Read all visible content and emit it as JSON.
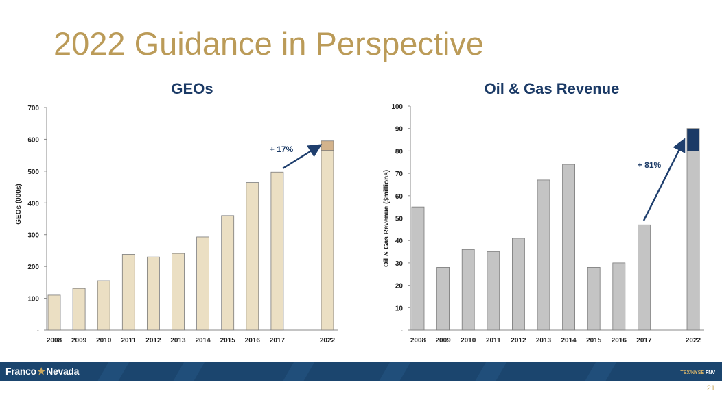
{
  "slide": {
    "title": "2022 Guidance in Perspective",
    "page_number": "21"
  },
  "footer": {
    "logo_left": "Franco",
    "logo_star": "★",
    "logo_right": "Nevada",
    "ticker_label": "TSX/NYSE",
    "ticker_symbol": "FNV"
  },
  "colors": {
    "title": "#bb9b58",
    "geo_bar": "#ebdfc3",
    "geo_increment": "#d3b38c",
    "oil_bar": "#c4c4c4",
    "oil_increment": "#1b3a66",
    "arrow": "#1f3f6e",
    "footer": "#1b456e"
  },
  "chart_data": [
    {
      "type": "bar",
      "title": "GEOs",
      "xlabel": "",
      "ylabel": "GEOs (000s)",
      "categories": [
        "2008",
        "2009",
        "2010",
        "2011",
        "2012",
        "2013",
        "2014",
        "2015",
        "2016",
        "2017",
        "2022"
      ],
      "values": [
        110,
        131,
        155,
        238,
        230,
        241,
        293,
        360,
        464,
        497,
        565
      ],
      "increment": {
        "category": "2022",
        "from": 565,
        "to": 595
      },
      "ylim": [
        0,
        700
      ],
      "yticks": [
        "-",
        "100",
        "200",
        "300",
        "400",
        "500",
        "600",
        "700"
      ],
      "annotation": {
        "text": "+ 17%",
        "from_category": "2017",
        "to_category": "2022"
      },
      "grid": false
    },
    {
      "type": "bar",
      "title": "Oil & Gas Revenue",
      "xlabel": "",
      "ylabel": "Oil & Gas Revenue ($millions)",
      "categories": [
        "2008",
        "2009",
        "2010",
        "2011",
        "2012",
        "2013",
        "2014",
        "2015",
        "2016",
        "2017",
        "2022"
      ],
      "values": [
        55,
        28,
        36,
        35,
        41,
        67,
        74,
        28,
        30,
        47,
        80
      ],
      "increment": {
        "category": "2022",
        "from": 80,
        "to": 90
      },
      "ylim": [
        0,
        100
      ],
      "yticks": [
        "-",
        "10",
        "20",
        "30",
        "40",
        "50",
        "60",
        "70",
        "80",
        "90",
        "100"
      ],
      "annotation": {
        "text": "+ 81%",
        "from_category": "2017",
        "to_category": "2022"
      },
      "grid": false
    }
  ]
}
